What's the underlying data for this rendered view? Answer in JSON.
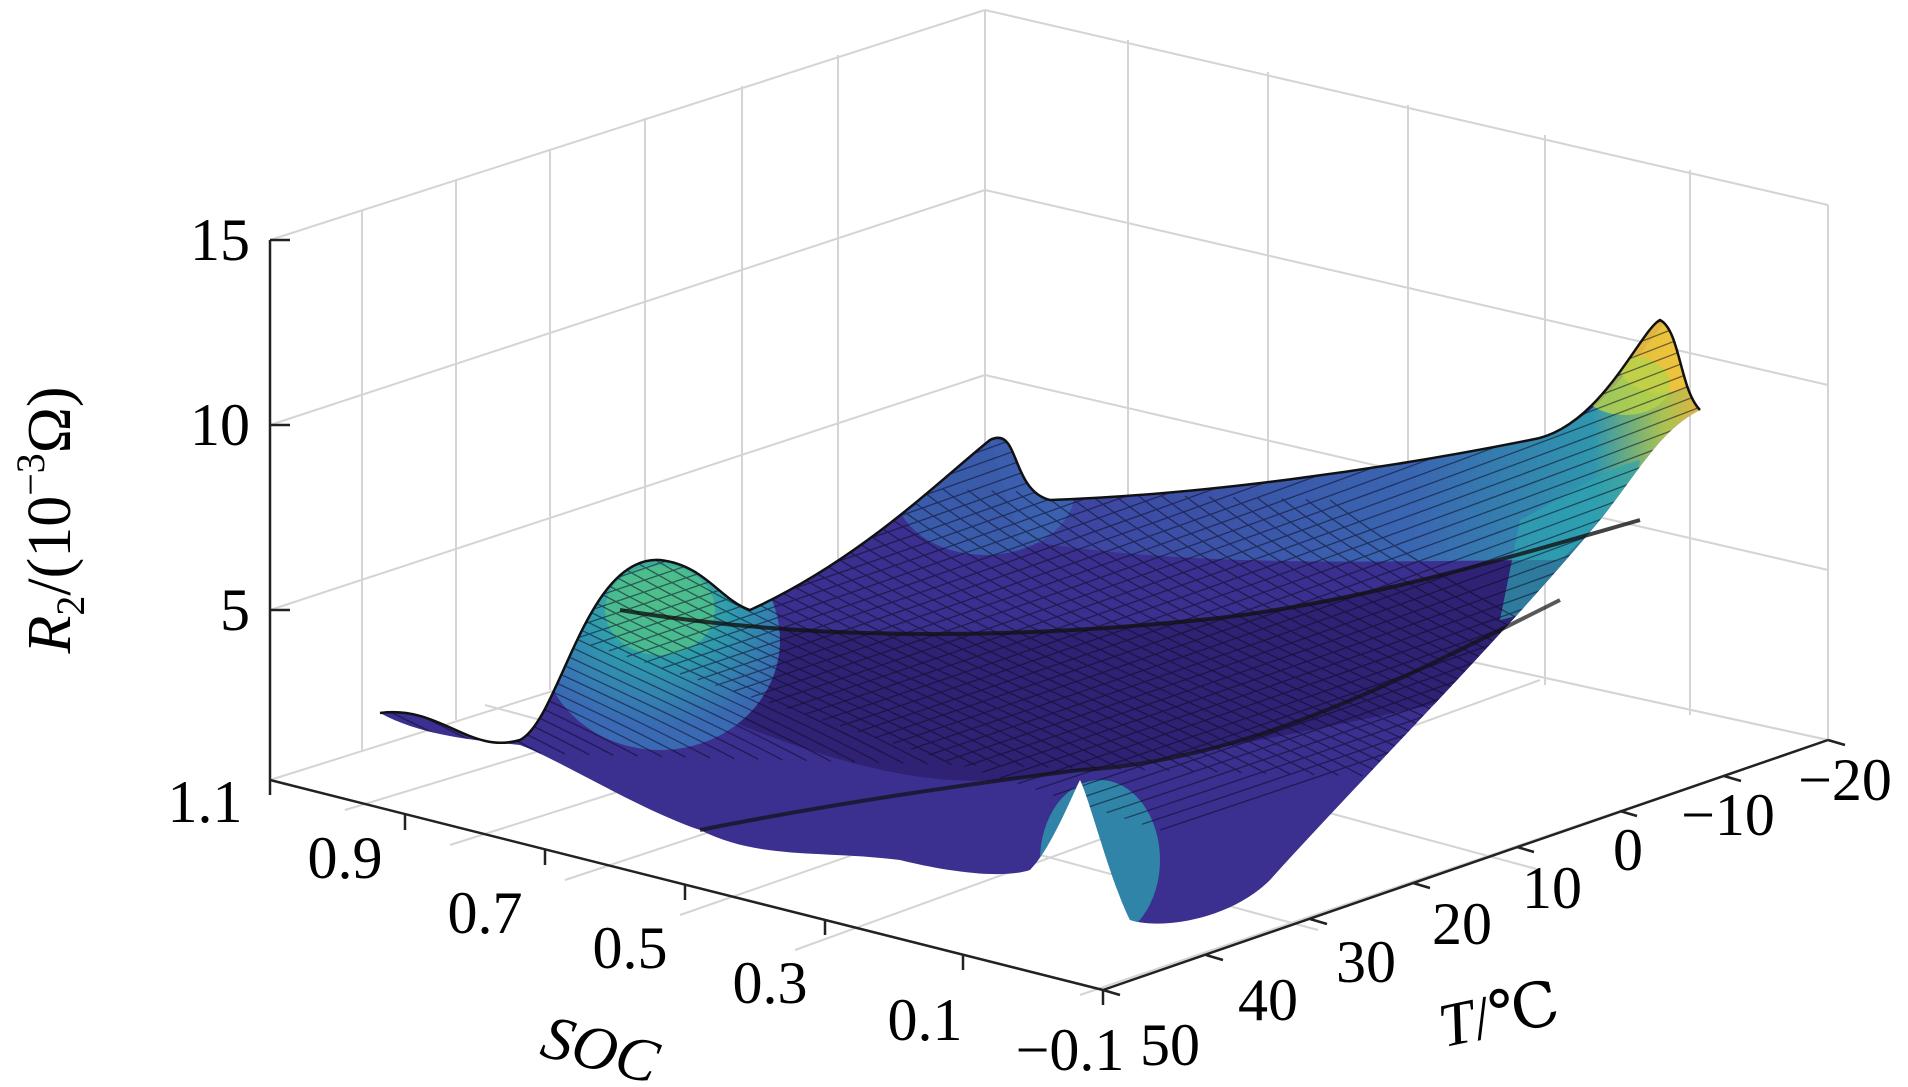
{
  "chart_data": {
    "type": "surface",
    "zlabel_main": "R",
    "zlabel_sub": "2",
    "zlabel_rest": "/(10",
    "zlabel_sup": "−3",
    "zlabel_unit": "Ω)",
    "xlabel": "SOC",
    "ylabel_var": "T",
    "ylabel_unit": "/℃",
    "soc_ticks": [
      "1.1",
      "0.9",
      "0.7",
      "0.5",
      "0.3",
      "0.1",
      "−0.1"
    ],
    "temp_ticks": [
      "50",
      "40",
      "30",
      "20",
      "10",
      "0",
      "−10",
      "−20"
    ],
    "z_ticks": [
      "5",
      "10",
      "15"
    ],
    "soc_range": [
      -0.1,
      1.1
    ],
    "temp_range": [
      -20,
      50
    ],
    "z_range": [
      0,
      15
    ],
    "grid": true,
    "colormap": [
      "#3b1b7a",
      "#3e3e9e",
      "#3a6db5",
      "#2ea2b0",
      "#4fc08a",
      "#b7d34a",
      "#f2c33a"
    ],
    "surface_samples": [
      {
        "soc": 1.0,
        "temp": 50,
        "r2": 2.6
      },
      {
        "soc": 0.85,
        "temp": 50,
        "r2": 2.7
      },
      {
        "soc": 0.72,
        "temp": 50,
        "r2": 6.2
      },
      {
        "soc": 0.55,
        "temp": 50,
        "r2": 2.5
      },
      {
        "soc": 0.0,
        "temp": 50,
        "r2": 1.0
      },
      {
        "soc": 0.25,
        "temp": 45,
        "r2": 2.8
      },
      {
        "soc": 0.62,
        "temp": 20,
        "r2": 7.5
      },
      {
        "soc": 1.0,
        "temp": -20,
        "r2": 4.5
      },
      {
        "soc": 0.0,
        "temp": -20,
        "r2": 10.5
      },
      {
        "soc": 0.5,
        "temp": -20,
        "r2": 6.5
      },
      {
        "soc": 0.3,
        "temp": 0,
        "r2": 3.0
      }
    ]
  }
}
